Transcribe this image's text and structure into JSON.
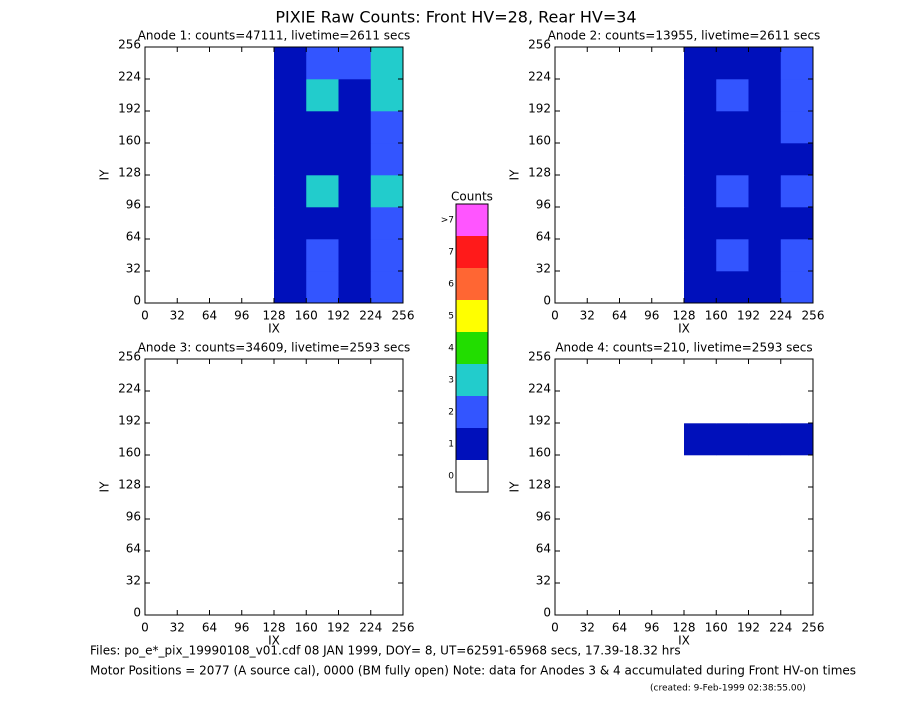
{
  "title": "PIXIE Raw Counts:  Front HV=28, Rear HV=34",
  "chart_data": [
    {
      "type": "heatmap",
      "title": "Anode 1: counts=47111, livetime=2611 secs",
      "xlabel": "IX",
      "ylabel": "IY",
      "xlim": [
        0,
        256
      ],
      "ylim": [
        0,
        256
      ],
      "xticks": [
        0,
        32,
        64,
        96,
        128,
        160,
        192,
        224,
        256
      ],
      "yticks": [
        0,
        32,
        64,
        96,
        128,
        160,
        192,
        224,
        256
      ],
      "values": [
        [
          0,
          0,
          0,
          0,
          1,
          2,
          1,
          2
        ],
        [
          0,
          0,
          0,
          0,
          1,
          2,
          1,
          2
        ],
        [
          0,
          0,
          0,
          0,
          1,
          1,
          1,
          2
        ],
        [
          0,
          0,
          0,
          0,
          1,
          3,
          1,
          3
        ],
        [
          0,
          0,
          0,
          0,
          1,
          1,
          1,
          2
        ],
        [
          0,
          0,
          0,
          0,
          1,
          1,
          1,
          2
        ],
        [
          0,
          0,
          0,
          0,
          1,
          3,
          1,
          3
        ],
        [
          0,
          0,
          0,
          0,
          1,
          2,
          2,
          3
        ]
      ]
    },
    {
      "type": "heatmap",
      "title": "Anode 2: counts=13955, livetime=2611 secs",
      "xlabel": "IX",
      "ylabel": "IY",
      "xlim": [
        0,
        256
      ],
      "ylim": [
        0,
        256
      ],
      "xticks": [
        0,
        32,
        64,
        96,
        128,
        160,
        192,
        224,
        256
      ],
      "yticks": [
        0,
        32,
        64,
        96,
        128,
        160,
        192,
        224,
        256
      ],
      "values": [
        [
          0,
          0,
          0,
          0,
          1,
          1,
          1,
          2
        ],
        [
          0,
          0,
          0,
          0,
          1,
          2,
          1,
          2
        ],
        [
          0,
          0,
          0,
          0,
          1,
          1,
          1,
          1
        ],
        [
          0,
          0,
          0,
          0,
          1,
          2,
          1,
          2
        ],
        [
          0,
          0,
          0,
          0,
          1,
          1,
          1,
          1
        ],
        [
          0,
          0,
          0,
          0,
          1,
          1,
          1,
          2
        ],
        [
          0,
          0,
          0,
          0,
          1,
          2,
          1,
          2
        ],
        [
          0,
          0,
          0,
          0,
          1,
          1,
          1,
          2
        ]
      ]
    },
    {
      "type": "heatmap",
      "title": "Anode 3: counts=34609, livetime=2593 secs",
      "xlabel": "IX",
      "ylabel": "IY",
      "xlim": [
        0,
        256
      ],
      "ylim": [
        0,
        256
      ],
      "xticks": [
        0,
        32,
        64,
        96,
        128,
        160,
        192,
        224,
        256
      ],
      "yticks": [
        0,
        32,
        64,
        96,
        128,
        160,
        192,
        224,
        256
      ],
      "values": [
        [
          0,
          0,
          0,
          0,
          0,
          0,
          0,
          0
        ],
        [
          0,
          0,
          0,
          0,
          0,
          0,
          0,
          0
        ],
        [
          0,
          0,
          0,
          0,
          0,
          0,
          0,
          0
        ],
        [
          0,
          0,
          0,
          0,
          0,
          0,
          0,
          0
        ],
        [
          0,
          0,
          0,
          0,
          0,
          0,
          0,
          0
        ],
        [
          0,
          0,
          0,
          0,
          0,
          0,
          0,
          0
        ],
        [
          0,
          0,
          0,
          0,
          0,
          0,
          0,
          0
        ],
        [
          0,
          0,
          0,
          0,
          0,
          0,
          0,
          0
        ]
      ]
    },
    {
      "type": "heatmap",
      "title": "Anode 4: counts=210, livetime=2593 secs",
      "xlabel": "IX",
      "ylabel": "IY",
      "xlim": [
        0,
        256
      ],
      "ylim": [
        0,
        256
      ],
      "xticks": [
        0,
        32,
        64,
        96,
        128,
        160,
        192,
        224,
        256
      ],
      "yticks": [
        0,
        32,
        64,
        96,
        128,
        160,
        192,
        224,
        256
      ],
      "values": [
        [
          0,
          0,
          0,
          0,
          0,
          0,
          0,
          0
        ],
        [
          0,
          0,
          0,
          0,
          0,
          0,
          0,
          0
        ],
        [
          0,
          0,
          0,
          0,
          0,
          0,
          0,
          0
        ],
        [
          0,
          0,
          0,
          0,
          0,
          0,
          0,
          0
        ],
        [
          0,
          0,
          0,
          0,
          0,
          0,
          0,
          0
        ],
        [
          0,
          0,
          0,
          0,
          1,
          1,
          1,
          1
        ],
        [
          0,
          0,
          0,
          0,
          0,
          0,
          0,
          0
        ],
        [
          0,
          0,
          0,
          0,
          0,
          0,
          0,
          0
        ]
      ]
    }
  ],
  "colorbar": {
    "title": "Counts",
    "labels": [
      "0",
      "1",
      "2",
      "3",
      "4",
      "5",
      "6",
      "7",
      ">7"
    ],
    "colors": [
      "#ffffff",
      "#0010bb",
      "#3355ff",
      "#22cccc",
      "#22dd00",
      "#ffff00",
      "#ff6633",
      "#ff1a1a",
      "#ff55ff"
    ]
  },
  "footer": [
    "Files: po_e*_pix_19990108_v01.cdf    08 JAN 1999, DOY=  8, UT=62591-65968 secs, 17.39-18.32 hrs",
    "Motor Positions = 2077 (A source cal), 0000 (BM fully open)    Note: data for Anodes 3 & 4 accumulated during Front HV-on times",
    "(created:  9-Feb-1999 02:38:55.00)"
  ]
}
